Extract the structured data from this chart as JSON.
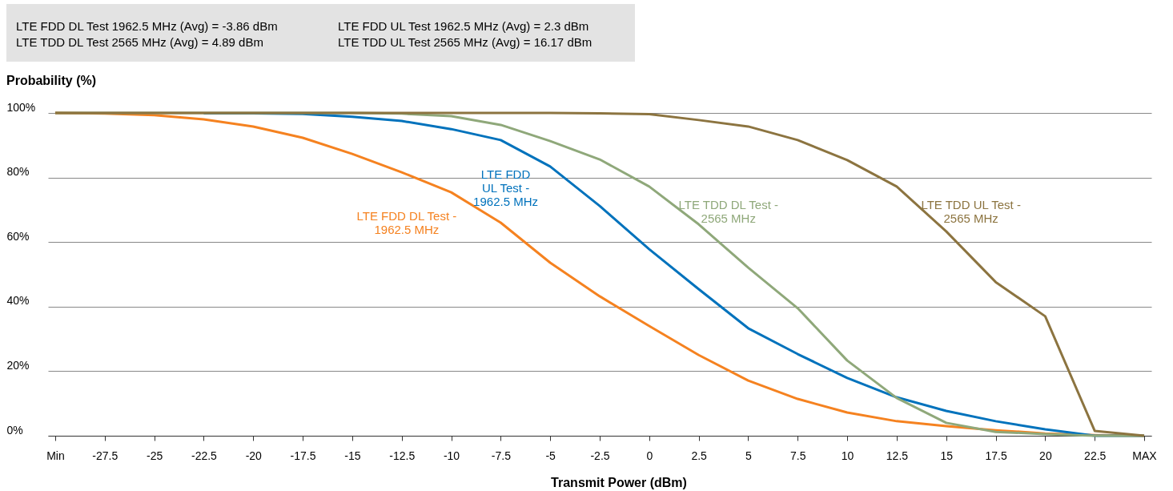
{
  "chart_data": {
    "type": "line",
    "categories": [
      "Min",
      "-27.5",
      "-25",
      "-22.5",
      "-20",
      "-17.5",
      "-15",
      "-12.5",
      "-10",
      "-7.5",
      "-5",
      "-2.5",
      "0",
      "2.5",
      "5",
      "7.5",
      "10",
      "12.5",
      "15",
      "17.5",
      "20",
      "22.5",
      "MAX"
    ],
    "series": [
      {
        "name": "LTE FDD DL Test -\n1962.5 MHz",
        "color": "#f58220",
        "values": [
          100,
          99.8,
          99.3,
          98,
          95.8,
          92.3,
          87.3,
          81.6,
          75.4,
          66,
          53.6,
          43.2,
          34,
          25,
          17.1,
          11.4,
          7.2,
          4.5,
          3,
          1.7,
          0.7,
          0.2,
          0
        ]
      },
      {
        "name": "LTE FDD\nUL Test -\n1962.5 MHz",
        "color": "#0072bc",
        "values": [
          null,
          null,
          null,
          99.9,
          99.9,
          99.7,
          98.8,
          97.5,
          95,
          91.6,
          83.4,
          71.2,
          57.8,
          45.4,
          33.3,
          25.3,
          17.9,
          11.9,
          7.7,
          4.5,
          2,
          0,
          0
        ]
      },
      {
        "name": "LTE TDD DL Test -\n2565 MHz",
        "color": "#8fa87a",
        "values": [
          100,
          100,
          100,
          100,
          100,
          100,
          100,
          99.8,
          99,
          96.3,
          91.3,
          85.6,
          77.2,
          65.5,
          52.1,
          39.5,
          23.3,
          11.7,
          4,
          1.2,
          0.5,
          0,
          0
        ]
      },
      {
        "name": "LTE TDD UL Test -\n2565 MHz",
        "color": "#8c7440",
        "values": [
          100,
          100,
          100,
          100,
          100,
          100,
          100,
          100,
          100,
          100,
          100,
          99.9,
          99.6,
          97.8,
          95.8,
          91.6,
          85.4,
          77.2,
          63.3,
          47.6,
          37,
          1.5,
          0
        ]
      }
    ],
    "ylabel": "Probability (%)",
    "xlabel": "Transmit Power (dBm)",
    "annotations": [
      "LTE FDD DL Test 1962.5 MHz (Avg) = -3.86 dBm",
      "LTE TDD DL Test 2565 MHz (Avg) = 4.89 dBm",
      "LTE FDD UL Test 1962.5 MHz (Avg) = 2.3 dBm",
      "LTE TDD UL Test 2565 MHz (Avg) = 16.17 dBm"
    ],
    "ylim": [
      0,
      100
    ],
    "yticks": [
      {
        "value": 0,
        "label": "0%"
      },
      {
        "value": 20,
        "label": "20%"
      },
      {
        "value": 40,
        "label": "40%"
      },
      {
        "value": 60,
        "label": "60%"
      },
      {
        "value": 80,
        "label": "80%"
      },
      {
        "value": 100,
        "label": "100%"
      }
    ],
    "grid": "y",
    "legend": false,
    "marker": "none",
    "line_style": "solid"
  }
}
